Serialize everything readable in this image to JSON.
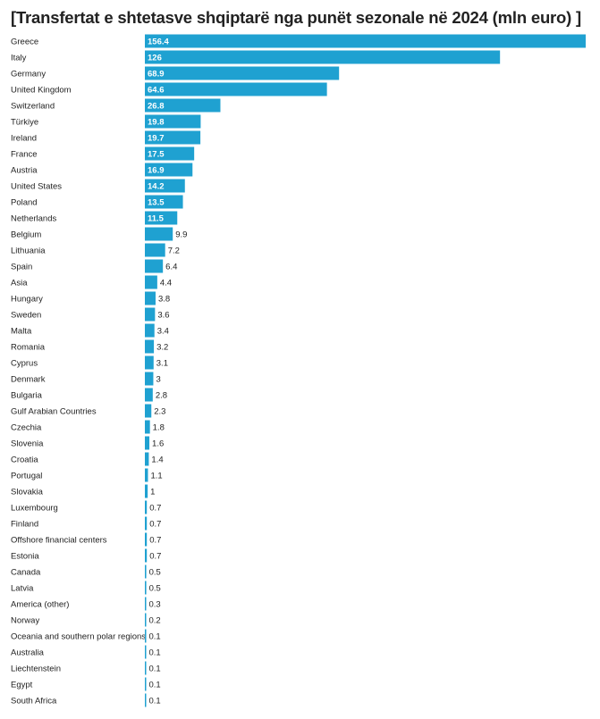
{
  "chart_data": {
    "type": "bar",
    "orientation": "horizontal",
    "title": "[Transfertat e shtetasve shqiptarë nga punët sezonale në 2024 (mln euro) ]",
    "bar_color": "#1fa1d1",
    "categories": [
      "Greece",
      "Italy",
      "Germany",
      "United Kingdom",
      "Switzerland",
      "Türkiye",
      "Ireland",
      "France",
      "Austria",
      "United States",
      "Poland",
      "Netherlands",
      "Belgium",
      "Lithuania",
      "Spain",
      "Asia",
      "Hungary",
      "Sweden",
      "Malta",
      "Romania",
      "Cyprus",
      "Denmark",
      "Bulgaria",
      "Gulf Arabian Countries",
      "Czechia",
      "Slovenia",
      "Croatia",
      "Portugal",
      "Slovakia",
      "Luxembourg",
      "Finland",
      "Offshore financial centers",
      "Estonia",
      "Canada",
      "Latvia",
      "America (other)",
      "Norway",
      "Oceania and southern polar regions",
      "Australia",
      "Liechtenstein",
      "Egypt",
      "South Africa"
    ],
    "values": [
      156.4,
      126,
      68.9,
      64.6,
      26.8,
      19.8,
      19.7,
      17.5,
      16.9,
      14.2,
      13.5,
      11.5,
      9.9,
      7.2,
      6.4,
      4.4,
      3.8,
      3.6,
      3.4,
      3.2,
      3.1,
      3,
      2.8,
      2.3,
      1.8,
      1.6,
      1.4,
      1.1,
      1,
      0.7,
      0.7,
      0.7,
      0.7,
      0.5,
      0.5,
      0.3,
      0.2,
      0.1,
      0.1,
      0.1,
      0.1,
      0.1
    ],
    "value_labels": [
      "156.4",
      "126",
      "68.9",
      "64.6",
      "26.8",
      "19.8",
      "19.7",
      "17.5",
      "16.9",
      "14.2",
      "13.5",
      "11.5",
      "9.9",
      "7.2",
      "6.4",
      "4.4",
      "3.8",
      "3.6",
      "3.4",
      "3.2",
      "3.1",
      "3",
      "2.8",
      "2.3",
      "1.8",
      "1.6",
      "1.4",
      "1.1",
      "1",
      "0.7",
      "0.7",
      "0.7",
      "0.7",
      "0.5",
      "0.5",
      "0.3",
      "0.2",
      "0.1",
      "0.1",
      "0.1",
      "0.1",
      "0.1"
    ],
    "xlim": [
      0,
      156.4
    ],
    "grid": false
  }
}
